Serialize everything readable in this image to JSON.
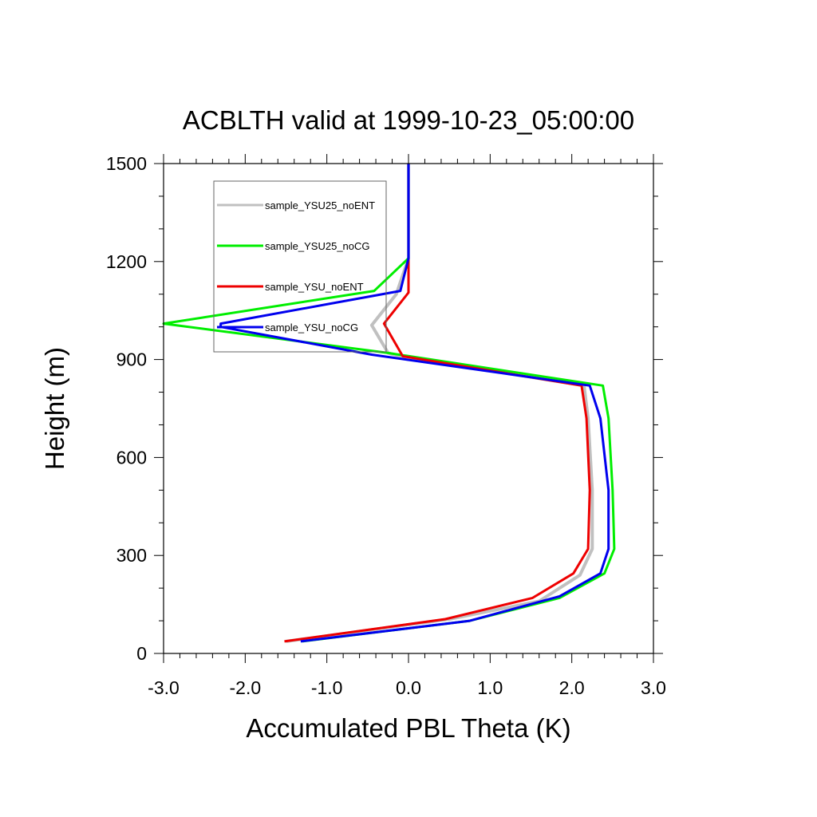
{
  "chart_data": {
    "type": "line",
    "title": "ACBLTH valid at 1999-10-23_05:00:00",
    "xlabel": "Accumulated PBL Theta (K)",
    "ylabel": "Height (m)",
    "xlim": [
      -3.0,
      3.0
    ],
    "ylim": [
      0,
      1500
    ],
    "x_ticks": [
      -3.0,
      -2.0,
      -1.0,
      0.0,
      1.0,
      2.0,
      3.0
    ],
    "x_tick_labels": [
      "-3.0",
      "-2.0",
      "-1.0",
      "0.0",
      "1.0",
      "2.0",
      "3.0"
    ],
    "y_ticks": [
      0,
      300,
      600,
      900,
      1200,
      1500
    ],
    "y_tick_labels": [
      "0",
      "300",
      "600",
      "900",
      "1200",
      "1500"
    ],
    "grid": false,
    "legend_position": "top-left",
    "series": [
      {
        "name": "sample_YSU25_noENT",
        "color": "#c0c0c0",
        "points": [
          [
            -1.5,
            37
          ],
          [
            0.5,
            105
          ],
          [
            1.6,
            160
          ],
          [
            2.1,
            240
          ],
          [
            2.25,
            320
          ],
          [
            2.25,
            500
          ],
          [
            2.2,
            720
          ],
          [
            2.15,
            820
          ],
          [
            -0.1,
            910
          ],
          [
            -0.25,
            920
          ],
          [
            -0.45,
            1005
          ],
          [
            -0.15,
            1100
          ],
          [
            0.0,
            1210
          ],
          [
            0.0,
            1500
          ]
        ]
      },
      {
        "name": "sample_YSU25_noCG",
        "color": "#00ee00",
        "points": [
          [
            -1.3,
            37
          ],
          [
            0.75,
            100
          ],
          [
            1.85,
            170
          ],
          [
            2.4,
            245
          ],
          [
            2.52,
            320
          ],
          [
            2.5,
            500
          ],
          [
            2.45,
            720
          ],
          [
            2.38,
            820
          ],
          [
            -0.25,
            920
          ],
          [
            -3.0,
            1010
          ],
          [
            -0.42,
            1110
          ],
          [
            0.0,
            1210
          ],
          [
            0.0,
            1500
          ]
        ]
      },
      {
        "name": "sample_YSU_noENT",
        "color": "#ee0000",
        "points": [
          [
            -1.52,
            37
          ],
          [
            0.45,
            105
          ],
          [
            1.52,
            170
          ],
          [
            2.02,
            245
          ],
          [
            2.2,
            320
          ],
          [
            2.22,
            500
          ],
          [
            2.18,
            720
          ],
          [
            2.12,
            820
          ],
          [
            -0.07,
            910
          ],
          [
            -0.3,
            1010
          ],
          [
            0.0,
            1105
          ],
          [
            0.0,
            1210
          ],
          [
            0.0,
            1500
          ]
        ]
      },
      {
        "name": "sample_YSU_noCG",
        "color": "#0000ee",
        "points": [
          [
            -1.32,
            37
          ],
          [
            0.75,
            100
          ],
          [
            1.85,
            175
          ],
          [
            2.35,
            245
          ],
          [
            2.45,
            320
          ],
          [
            2.45,
            500
          ],
          [
            2.35,
            720
          ],
          [
            2.22,
            820
          ],
          [
            -0.45,
            915
          ],
          [
            -2.3,
            1000
          ],
          [
            -2.3,
            1010
          ],
          [
            -0.1,
            1110
          ],
          [
            0.0,
            1210
          ],
          [
            0.0,
            1500
          ]
        ]
      }
    ]
  }
}
